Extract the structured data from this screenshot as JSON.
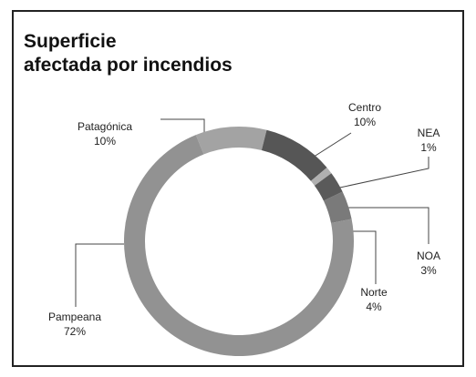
{
  "chart_data": {
    "type": "donut",
    "title": [
      "Superficie",
      "afectada por incendios"
    ],
    "categories": [
      "Patagónica",
      "Centro",
      "NEA",
      "NOA",
      "Norte",
      "Pampeana"
    ],
    "values": [
      10,
      10,
      1,
      3,
      4,
      72
    ],
    "value_labels": [
      "10%",
      "10%",
      "1%",
      "3%",
      "4%",
      "72%"
    ],
    "colors": [
      "#a3a3a3",
      "#565656",
      "#b0b0b0",
      "#5a5a5a",
      "#7a7a7a",
      "#929292"
    ]
  }
}
